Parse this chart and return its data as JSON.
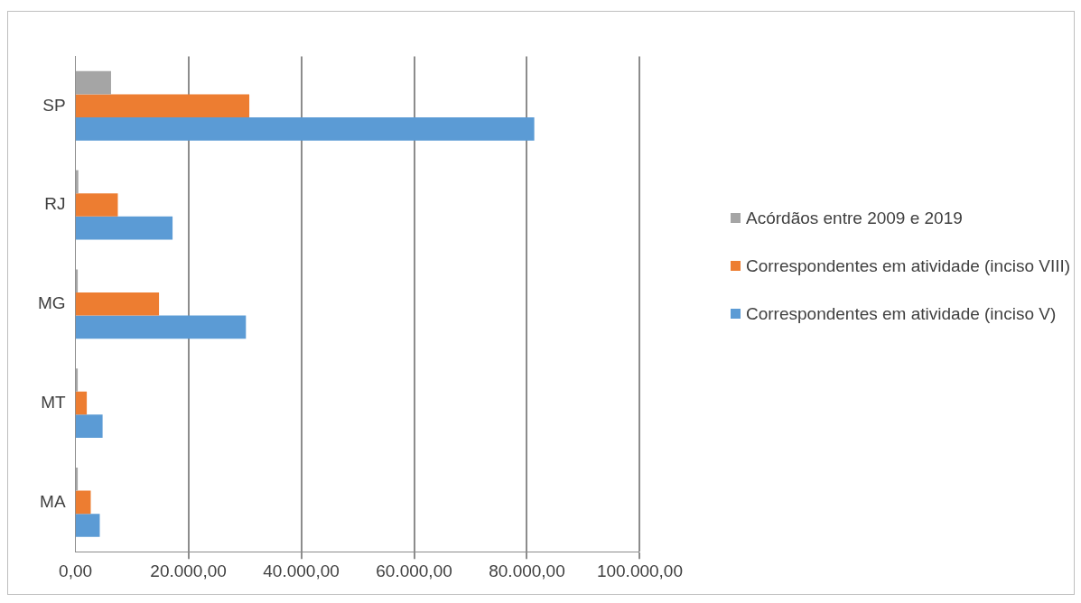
{
  "chart_data": {
    "type": "bar",
    "orientation": "horizontal",
    "categories": [
      "SP",
      "RJ",
      "MG",
      "MT",
      "MA"
    ],
    "series": [
      {
        "name": "Acórdãos entre 2009 e 2019",
        "color": "#a5a5a5",
        "values": [
          6300,
          500,
          400,
          400,
          400
        ]
      },
      {
        "name": "Correspondentes em atividade (inciso VIII)",
        "color": "#ed7d31",
        "values": [
          30800,
          7500,
          14800,
          2000,
          2700
        ]
      },
      {
        "name": "Correspondentes em atividade (inciso V)",
        "color": "#5b9bd5",
        "values": [
          81300,
          17200,
          30200,
          4800,
          4300
        ]
      }
    ],
    "xlim": [
      0,
      100000
    ],
    "xticks": [
      {
        "value": 0,
        "label": "0,00"
      },
      {
        "value": 20000,
        "label": "20.000,00"
      },
      {
        "value": 40000,
        "label": "40.000,00"
      },
      {
        "value": 60000,
        "label": "60.000,00"
      },
      {
        "value": 80000,
        "label": "80.000,00"
      },
      {
        "value": 100000,
        "label": "100.000,00"
      }
    ],
    "grid": "x",
    "legend": "right"
  }
}
